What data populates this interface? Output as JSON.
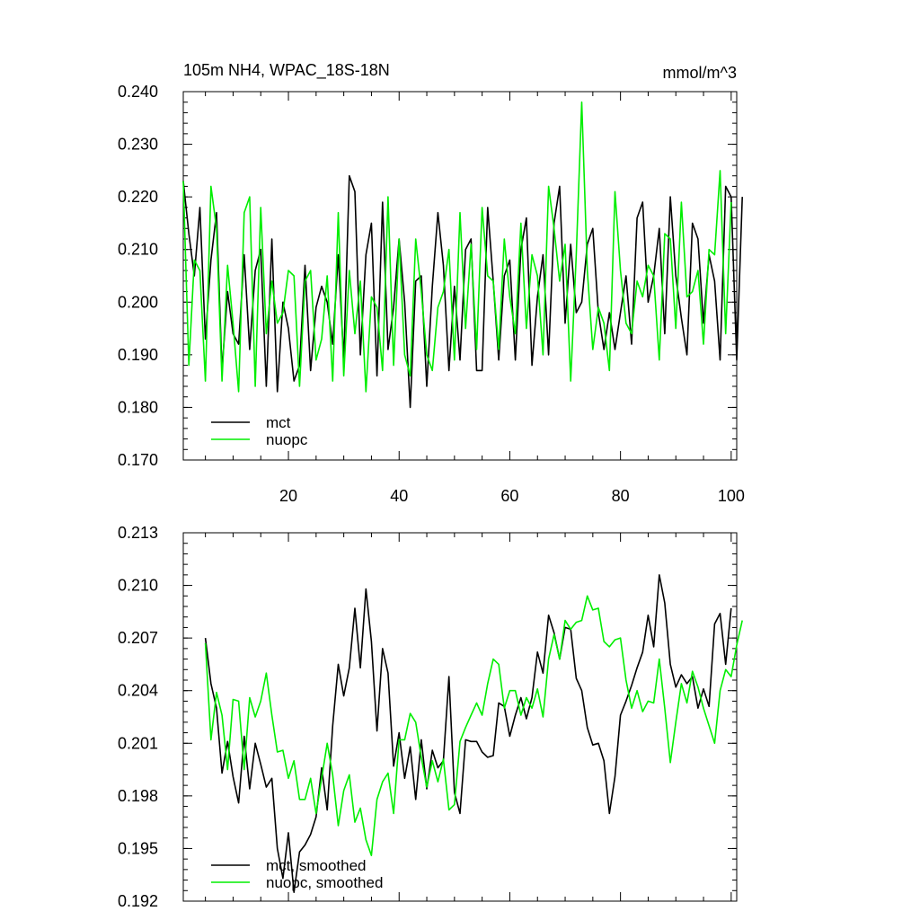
{
  "chart_data": [
    {
      "type": "line",
      "title": "105m NH4, WPAC_18S-18N",
      "units_label": "mmol/m^3",
      "xlim": [
        1,
        101
      ],
      "ylim": [
        0.17,
        0.24
      ],
      "xticks": [
        20,
        40,
        60,
        80,
        100
      ],
      "yticks": [
        "0.170",
        "0.180",
        "0.190",
        "0.200",
        "0.210",
        "0.220",
        "0.230",
        "0.240"
      ],
      "show_xtick_labels": true,
      "legend_position": "bottom-left",
      "series": [
        {
          "name": "mct",
          "color": "#000000",
          "x_start": 1,
          "values": [
            0.223,
            0.213,
            0.205,
            0.218,
            0.193,
            0.208,
            0.217,
            0.187,
            0.202,
            0.194,
            0.192,
            0.209,
            0.191,
            0.206,
            0.21,
            0.184,
            0.212,
            0.183,
            0.2,
            0.195,
            0.185,
            0.188,
            0.207,
            0.187,
            0.199,
            0.203,
            0.2,
            0.192,
            0.209,
            0.189,
            0.224,
            0.221,
            0.19,
            0.209,
            0.215,
            0.186,
            0.219,
            0.191,
            0.199,
            0.212,
            0.2,
            0.18,
            0.204,
            0.205,
            0.184,
            0.203,
            0.217,
            0.207,
            0.187,
            0.203,
            0.189,
            0.21,
            0.212,
            0.187,
            0.187,
            0.218,
            0.204,
            0.189,
            0.205,
            0.208,
            0.189,
            0.21,
            0.216,
            0.188,
            0.201,
            0.209,
            0.19,
            0.215,
            0.222,
            0.196,
            0.211,
            0.198,
            0.2,
            0.211,
            0.214,
            0.198,
            0.191,
            0.198,
            0.191,
            0.198,
            0.205,
            0.192,
            0.216,
            0.219,
            0.2,
            0.205,
            0.214,
            0.194,
            0.22,
            0.205,
            0.197,
            0.19,
            0.215,
            0.212,
            0.196,
            0.209,
            0.204,
            0.189,
            0.222,
            0.22,
            0.189,
            0.22
          ]
        },
        {
          "name": "nuopc",
          "color": "#00ee00",
          "x_start": 1,
          "values": [
            0.223,
            0.188,
            0.208,
            0.206,
            0.185,
            0.222,
            0.214,
            0.185,
            0.207,
            0.196,
            0.183,
            0.217,
            0.22,
            0.184,
            0.218,
            0.194,
            0.204,
            0.196,
            0.198,
            0.206,
            0.205,
            0.184,
            0.204,
            0.206,
            0.189,
            0.193,
            0.205,
            0.185,
            0.217,
            0.186,
            0.206,
            0.194,
            0.204,
            0.183,
            0.201,
            0.199,
            0.187,
            0.22,
            0.188,
            0.212,
            0.19,
            0.186,
            0.212,
            0.202,
            0.19,
            0.187,
            0.199,
            0.202,
            0.21,
            0.189,
            0.217,
            0.195,
            0.211,
            0.191,
            0.218,
            0.205,
            0.204,
            0.191,
            0.212,
            0.201,
            0.194,
            0.215,
            0.195,
            0.209,
            0.205,
            0.19,
            0.222,
            0.214,
            0.204,
            0.211,
            0.185,
            0.209,
            0.238,
            0.206,
            0.191,
            0.199,
            0.196,
            0.187,
            0.221,
            0.206,
            0.196,
            0.194,
            0.204,
            0.201,
            0.207,
            0.205,
            0.189,
            0.213,
            0.212,
            0.195,
            0.219,
            0.201,
            0.202,
            0.206,
            0.192,
            0.21,
            0.209,
            0.225,
            0.194,
            0.219
          ]
        }
      ]
    },
    {
      "type": "line",
      "xlim": [
        1,
        101
      ],
      "ylim": [
        0.192,
        0.213
      ],
      "xticks": [
        20,
        40,
        60,
        80,
        100
      ],
      "yticks": [
        "0.192",
        "0.195",
        "0.198",
        "0.201",
        "0.204",
        "0.207",
        "0.210",
        "0.213"
      ],
      "show_xtick_labels": false,
      "legend_position": "bottom-left",
      "series": [
        {
          "name": "mct, smoothed",
          "color": "#000000",
          "x_start": 5,
          "values": [
            0.207,
            0.2044,
            0.203,
            0.1993,
            0.2011,
            0.1991,
            0.1976,
            0.2014,
            0.1984,
            0.201,
            0.1998,
            0.1985,
            0.199,
            0.195,
            0.1933,
            0.1959,
            0.1925,
            0.1948,
            0.1952,
            0.1958,
            0.1968,
            0.1996,
            0.1972,
            0.202,
            0.2055,
            0.2037,
            0.2053,
            0.2087,
            0.2053,
            0.2098,
            0.2068,
            0.2017,
            0.2064,
            0.205,
            0.1997,
            0.2016,
            0.199,
            0.2008,
            0.1978,
            0.2012,
            0.1984,
            0.2006,
            0.1996,
            0.2,
            0.2048,
            0.1982,
            0.197,
            0.2012,
            0.2011,
            0.2011,
            0.2005,
            0.2002,
            0.2003,
            0.2033,
            0.2031,
            0.2014,
            0.2026,
            0.2036,
            0.2024,
            0.2036,
            0.2062,
            0.205,
            0.2083,
            0.2073,
            0.2058,
            0.2076,
            0.2075,
            0.2047,
            0.204,
            0.2019,
            0.2009,
            0.201,
            0.2,
            0.197,
            0.1991,
            0.2026,
            0.2034,
            0.2043,
            0.2053,
            0.2062,
            0.2083,
            0.2065,
            0.2106,
            0.209,
            0.2055,
            0.2042,
            0.2049,
            0.2044,
            0.2048,
            0.203,
            0.2041,
            0.2031,
            0.2078,
            0.2084,
            0.2055,
            0.2087
          ]
        },
        {
          "name": "nuopc, smoothed",
          "color": "#00ee00",
          "x_start": 5,
          "values": [
            0.2067,
            0.2012,
            0.2039,
            0.2026,
            0.1995,
            0.2035,
            0.2034,
            0.1995,
            0.2036,
            0.2025,
            0.2034,
            0.205,
            0.2026,
            0.2005,
            0.2006,
            0.199,
            0.2,
            0.1978,
            0.1978,
            0.199,
            0.197,
            0.199,
            0.201,
            0.1992,
            0.1963,
            0.1983,
            0.1992,
            0.1965,
            0.1973,
            0.1955,
            0.1946,
            0.1978,
            0.1988,
            0.1993,
            0.197,
            0.2012,
            0.2012,
            0.2027,
            0.2022,
            0.2002,
            0.1985,
            0.2,
            0.1988,
            0.2001,
            0.1972,
            0.1975,
            0.2011,
            0.2019,
            0.2026,
            0.2033,
            0.2026,
            0.2044,
            0.2058,
            0.2055,
            0.203,
            0.204,
            0.204,
            0.2026,
            0.2036,
            0.203,
            0.2041,
            0.2025,
            0.2058,
            0.2072,
            0.2058,
            0.208,
            0.2075,
            0.2079,
            0.208,
            0.2094,
            0.2086,
            0.2087,
            0.2068,
            0.2065,
            0.2069,
            0.207,
            0.2046,
            0.203,
            0.204,
            0.2028,
            0.2034,
            0.2033,
            0.2058,
            0.203,
            0.1999,
            0.2022,
            0.2044,
            0.2033,
            0.2051,
            0.2042,
            0.203,
            0.202,
            0.201,
            0.204,
            0.2052,
            0.2048,
            0.2066,
            0.208
          ]
        }
      ]
    }
  ]
}
